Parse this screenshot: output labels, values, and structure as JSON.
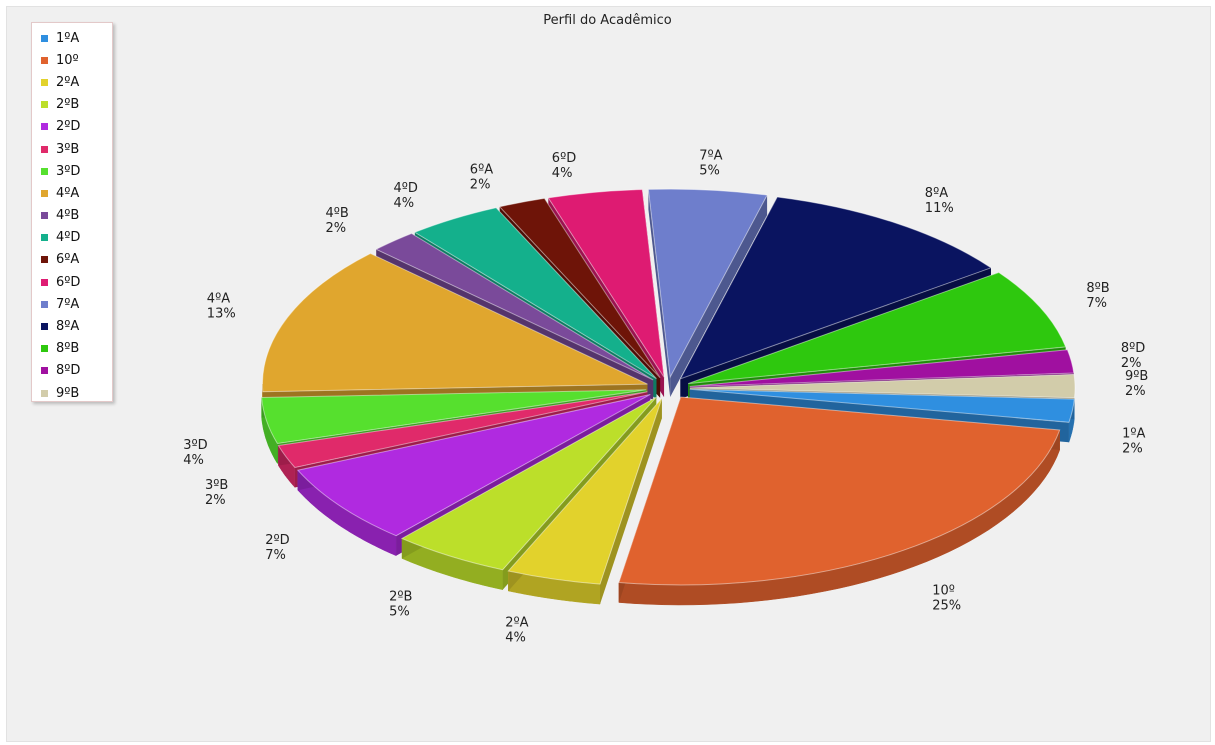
{
  "chart_data": {
    "type": "pie",
    "title": "Perfil do Acadêmico",
    "slices": [
      {
        "label": "1ºA",
        "value": 2,
        "pct_label": "2%",
        "color": "#2f8fe0"
      },
      {
        "label": "10º",
        "value": 25,
        "pct_label": "25%",
        "color": "#e0622e"
      },
      {
        "label": "2ºA",
        "value": 4,
        "pct_label": "4%",
        "color": "#e2d22c"
      },
      {
        "label": "2ºB",
        "value": 5,
        "pct_label": "5%",
        "color": "#bcdf2a"
      },
      {
        "label": "2ºD",
        "value": 7,
        "pct_label": "7%",
        "color": "#b02ae0"
      },
      {
        "label": "3ºB",
        "value": 2,
        "pct_label": "2%",
        "color": "#e02a6a"
      },
      {
        "label": "3ºD",
        "value": 4,
        "pct_label": "4%",
        "color": "#56e02e"
      },
      {
        "label": "4ºA",
        "value": 13,
        "pct_label": "13%",
        "color": "#e0a62e"
      },
      {
        "label": "4ºB",
        "value": 2,
        "pct_label": "2%",
        "color": "#7a4a9a"
      },
      {
        "label": "4ºD",
        "value": 4,
        "pct_label": "4%",
        "color": "#14b08c"
      },
      {
        "label": "6ºA",
        "value": 2,
        "pct_label": "2%",
        "color": "#6e1408"
      },
      {
        "label": "6ºD",
        "value": 4,
        "pct_label": "4%",
        "color": "#de1b72"
      },
      {
        "label": "7ºA",
        "value": 5,
        "pct_label": "5%",
        "color": "#6e7ecc"
      },
      {
        "label": "8ºA",
        "value": 11,
        "pct_label": "11%",
        "color": "#0a1460"
      },
      {
        "label": "8ºB",
        "value": 7,
        "pct_label": "7%",
        "color": "#2ec80e"
      },
      {
        "label": "8ºD",
        "value": 2,
        "pct_label": "2%",
        "color": "#a010a0"
      },
      {
        "label": "9ºB",
        "value": 2,
        "pct_label": "2%",
        "color": "#d2ccaa"
      }
    ],
    "legend_position": "top-left",
    "exploded": true,
    "three_d": true
  }
}
